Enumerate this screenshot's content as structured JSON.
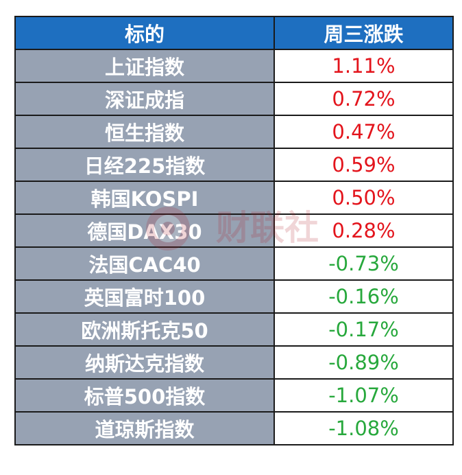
{
  "header": {
    "col_name": "标的",
    "col_change": "周三涨跌"
  },
  "colors": {
    "header_bg": "#1e6fc0",
    "name_bg": "#97a2b3",
    "up": "#e3141c",
    "down": "#27a83c"
  },
  "rows": [
    {
      "name": "上证指数",
      "change": "1.11%",
      "direction": "up"
    },
    {
      "name": "深证成指",
      "change": "0.72%",
      "direction": "up"
    },
    {
      "name": "恒生指数",
      "change": "0.47%",
      "direction": "up"
    },
    {
      "name": "日经225指数",
      "change": "0.59%",
      "direction": "up"
    },
    {
      "name": "韩国KOSPI",
      "change": "0.50%",
      "direction": "up"
    },
    {
      "name": "德国DAX30",
      "change": "0.28%",
      "direction": "up"
    },
    {
      "name": "法国CAC40",
      "change": "-0.73%",
      "direction": "down"
    },
    {
      "name": "英国富时100",
      "change": "-0.16%",
      "direction": "down"
    },
    {
      "name": "欧洲斯托克50",
      "change": "-0.17%",
      "direction": "down"
    },
    {
      "name": "纳斯达克指数",
      "change": "-0.89%",
      "direction": "down"
    },
    {
      "name": "标普500指数",
      "change": "-1.07%",
      "direction": "down"
    },
    {
      "name": "道琼斯指数",
      "change": "-1.08%",
      "direction": "down"
    }
  ],
  "watermark": {
    "text": "财联社",
    "icon": "cls-logo-icon"
  }
}
